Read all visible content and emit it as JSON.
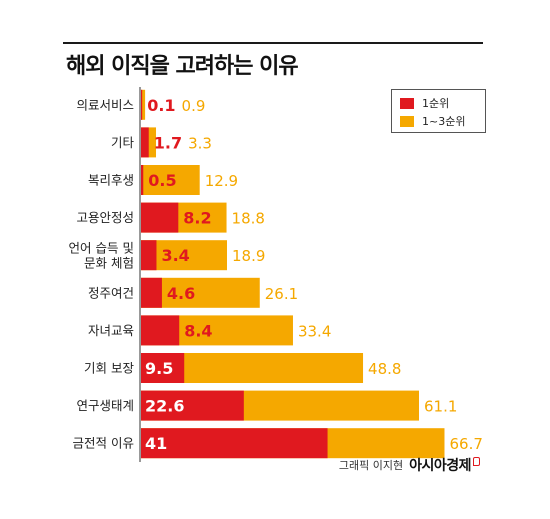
{
  "title": "해외 이직을 고려하는 이유",
  "credit": {
    "text": "그래픽 이지현",
    "brand": "아시아경제"
  },
  "colors": {
    "rank1": "#e0191f",
    "rank1to3": "#f5a800"
  },
  "chart_data": {
    "type": "bar",
    "orientation": "horizontal",
    "categories": [
      "의료서비스",
      "기타",
      "복리후생",
      [
        "고용안정성"
      ],
      [
        "언어 습득 및",
        "문화 체험"
      ],
      [
        "정주여건"
      ],
      [
        "자녀교육"
      ],
      [
        "기회 보장"
      ],
      [
        "연구생태계"
      ],
      [
        "금전적 이유"
      ]
    ],
    "series": [
      {
        "name": "1순위",
        "values": [
          0.1,
          1.7,
          0.5,
          8.2,
          3.4,
          4.6,
          8.4,
          9.5,
          22.6,
          41
        ],
        "color": "#e0191f"
      },
      {
        "name": "1~3순위",
        "values": [
          0.9,
          3.3,
          12.9,
          18.8,
          18.9,
          26.1,
          33.4,
          48.8,
          61.1,
          66.7
        ],
        "color": "#f5a800"
      }
    ],
    "xlim": [
      0,
      70
    ],
    "legend_position": "top-right",
    "grid": false
  }
}
